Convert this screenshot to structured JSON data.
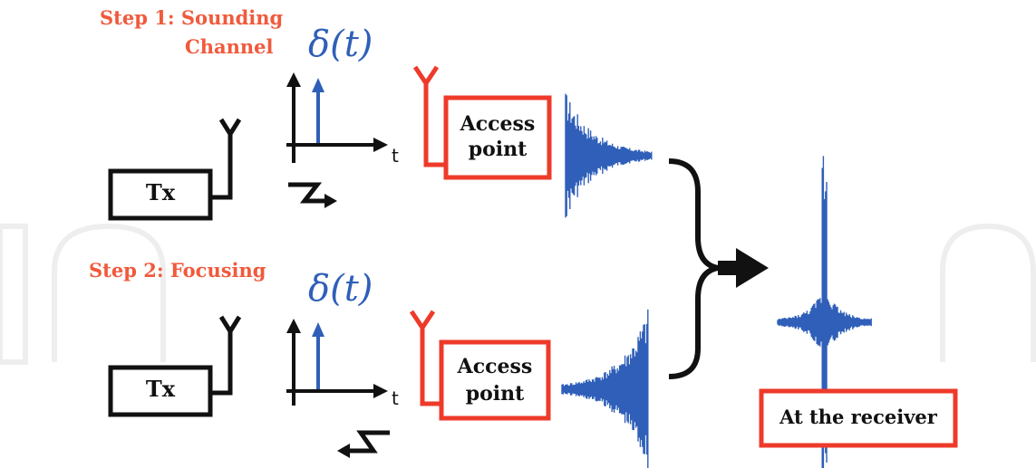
{
  "step1": {
    "line1": "Step 1: Sounding",
    "line2": "Channel"
  },
  "step2": {
    "label": "Step 2: Focusing"
  },
  "tx_label": "Tx",
  "access_point": {
    "line1": "Access",
    "line2": "point"
  },
  "delta_label": "δ(t)",
  "axis_label": "t",
  "receiver_label": "At the receiver",
  "colors": {
    "red": "#ee3a2a",
    "blue": "#2f5fb8",
    "black": "#111111",
    "orange_text": "#f05a3c"
  }
}
